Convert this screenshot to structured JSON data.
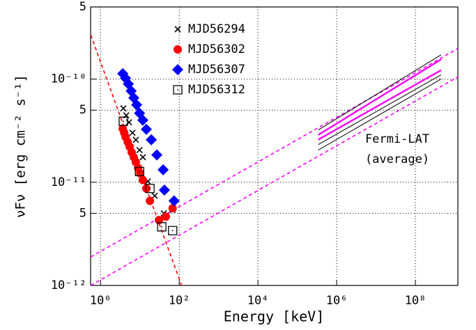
{
  "chart_data": {
    "type": "scatter",
    "xlabel": "Energy [keV]",
    "ylabel": "νFν [erg cm⁻² s⁻¹]",
    "xscale": "log",
    "yscale": "log",
    "grid": true,
    "legend": "top",
    "xlim": [
      0.56,
      1200000000.0
    ],
    "ylim": [
      1e-12,
      5e-10
    ],
    "xticks": [
      {
        "value": 1,
        "label": "10⁰"
      },
      {
        "value": 100,
        "label": "10²"
      },
      {
        "value": 10000,
        "label": "10⁴"
      },
      {
        "value": 1000000,
        "label": "10⁶"
      },
      {
        "value": 100000000,
        "label": "10⁸"
      }
    ],
    "yticks": [
      {
        "value": 1e-12,
        "label": "10⁻¹²"
      },
      {
        "value": 5e-12,
        "label": "5"
      },
      {
        "value": 1e-11,
        "label": "10⁻¹¹"
      },
      {
        "value": 5e-11,
        "label": "5"
      },
      {
        "value": 1e-10,
        "label": "10⁻¹⁰"
      },
      {
        "value": 5e-10,
        "label": "5"
      }
    ],
    "annotation": [
      "Fermi-LAT",
      "(average)"
    ],
    "annotation_color": "#ff00ff",
    "series": [
      {
        "name": "MJD56294",
        "color": "#000000",
        "marker": "cross",
        "x": [
          3.8,
          4.5,
          5.3,
          6.5,
          7.9,
          9.8,
          11.9,
          15.9,
          23.8,
          40.5,
          68
        ],
        "values": [
          5.2e-11,
          4.45e-11,
          3.81e-11,
          3.02e-11,
          2.58e-11,
          2.05e-11,
          1.75e-11,
          1.02e-11,
          7.4e-12,
          5e-12,
          5.4e-12
        ]
      },
      {
        "name": "MJD56302",
        "color": "#ff0000",
        "marker": "circle",
        "x": [
          3.67,
          4.0,
          4.33,
          4.9,
          5.5,
          6.2,
          7.0,
          7.9,
          9.0,
          10.2,
          11.9,
          14.6,
          18.0,
          30.6,
          45.7,
          68
        ],
        "values": [
          3.31e-11,
          3.02e-11,
          2.75e-11,
          2.46e-11,
          2.21e-11,
          1.95e-11,
          1.75e-11,
          1.57e-11,
          1.38e-11,
          1.22e-11,
          1.05e-11,
          8.7e-12,
          6.6e-12,
          4.3e-12,
          4.65e-12,
          5.6e-12
        ]
      },
      {
        "name": "MJD56307",
        "color": "#0000ff",
        "marker": "diamond",
        "x": [
          3.67,
          4.33,
          5.1,
          6.0,
          7.0,
          8.3,
          9.8,
          11.9,
          14.6,
          19.5,
          27,
          39,
          42,
          74
        ],
        "values": [
          1.13e-10,
          1.02e-10,
          8.97e-11,
          7.67e-11,
          6.57e-11,
          5.62e-11,
          4.67e-11,
          4e-11,
          3.26e-11,
          2.58e-11,
          1.84e-11,
          1.32e-11,
          8.4e-12,
          6.6e-12
        ]
      },
      {
        "name": "MJD56312",
        "color": "#000000",
        "marker": "square",
        "x": [
          3.8,
          9.8,
          18.0,
          36,
          68
        ],
        "values": [
          3.9e-11,
          1.27e-11,
          8.7e-12,
          3.7e-12,
          3.4e-12
        ]
      }
    ],
    "lines": [
      {
        "color": "#ff0000",
        "dash": true,
        "x": [
          0.566,
          121.6
        ],
        "values": [
          2.67e-10,
          9.4e-13
        ]
      },
      {
        "color": "#ff00ff",
        "dash": true,
        "x": [
          0.566,
          1200000000.0
        ],
        "values": [
          1.89e-12,
          1.98e-10
        ]
      },
      {
        "color": "#ff00ff",
        "dash": true,
        "x": [
          0.566,
          1200000000.0
        ],
        "values": [
          1e-12,
          1.05e-10
        ]
      },
      {
        "color": "#000000",
        "dash": false,
        "x": [
          340000,
          450000000
        ],
        "values": [
          3.21e-11,
          1.72e-10
        ]
      },
      {
        "color": "#000000",
        "dash": false,
        "x": [
          340000,
          450000000
        ],
        "values": [
          2.05e-11,
          1e-10
        ]
      },
      {
        "color": "#000000",
        "dash": false,
        "x": [
          340000,
          450000000
        ],
        "values": [
          2.32e-11,
          1.1e-10
        ]
      },
      {
        "color": "#ff00ff",
        "dash": false,
        "x": [
          340000,
          450000000
        ],
        "values": [
          2.88e-11,
          1.55e-10
        ]
      },
      {
        "color": "#ff00ff",
        "dash": false,
        "x": [
          340000,
          450000000
        ],
        "values": [
          2.59e-11,
          1.22e-10
        ]
      }
    ]
  }
}
